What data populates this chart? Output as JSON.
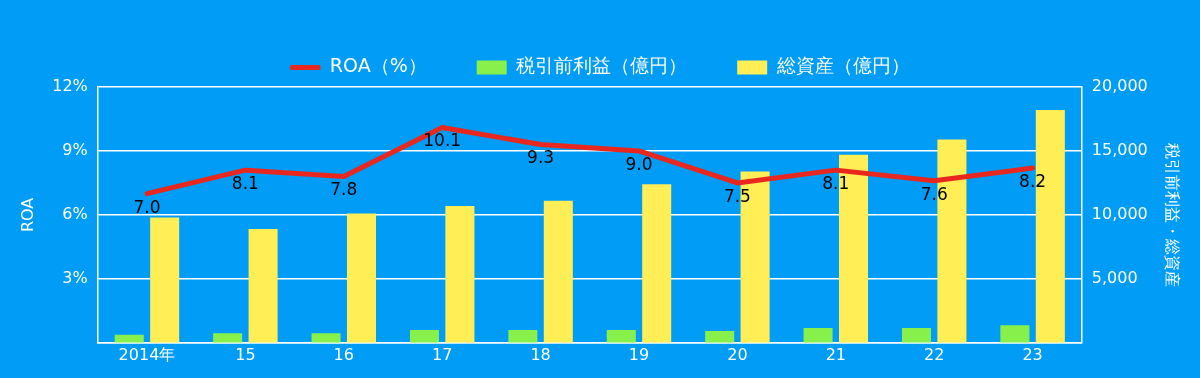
{
  "chart_data": {
    "type": "bar",
    "ylabel": "ROA",
    "y2label": "税引前利益・総資産",
    "categories": [
      "2014年",
      "15",
      "16",
      "17",
      "18",
      "19",
      "20",
      "21",
      "22",
      "23"
    ],
    "series": [
      {
        "name": "ROA（%）",
        "type": "line",
        "color": "#e8281e",
        "values": [
          7.0,
          8.1,
          7.8,
          10.1,
          9.3,
          9.0,
          7.5,
          8.1,
          7.6,
          8.2
        ],
        "value_labels": [
          "7.0",
          "8.1",
          "7.8",
          "10.1",
          "9.3",
          "9.0",
          "7.5",
          "8.1",
          "7.6",
          "8.2"
        ]
      },
      {
        "name": "税引前利益（億円）",
        "axis": "y2",
        "color": "#88f04a",
        "values": [
          630,
          740,
          740,
          1000,
          1000,
          1000,
          920,
          1150,
          1150,
          1380
        ]
      },
      {
        "name": "総資産（億円）",
        "axis": "y2",
        "color": "#ffee55",
        "values": [
          9800,
          8900,
          10100,
          10700,
          11100,
          12400,
          13400,
          14700,
          15900,
          18200
        ]
      }
    ],
    "ylim": [
      0,
      12
    ],
    "yticks": [
      {
        "value": 0,
        "label": null
      },
      {
        "value": 3,
        "label": "3%"
      },
      {
        "value": 6,
        "label": "6%"
      },
      {
        "value": 9,
        "label": "9%"
      },
      {
        "value": 12,
        "label": "12%"
      }
    ],
    "y2lim": [
      0,
      20000
    ],
    "y2ticks": [
      {
        "value": 0,
        "label": null
      },
      {
        "value": 5000,
        "label": "5,000"
      },
      {
        "value": 10000,
        "label": "10,000"
      },
      {
        "value": 15000,
        "label": "15,000"
      },
      {
        "value": 20000,
        "label": "20,000"
      }
    ],
    "grid": "y",
    "legend": "top",
    "marker": "none",
    "line_style": "solid"
  }
}
